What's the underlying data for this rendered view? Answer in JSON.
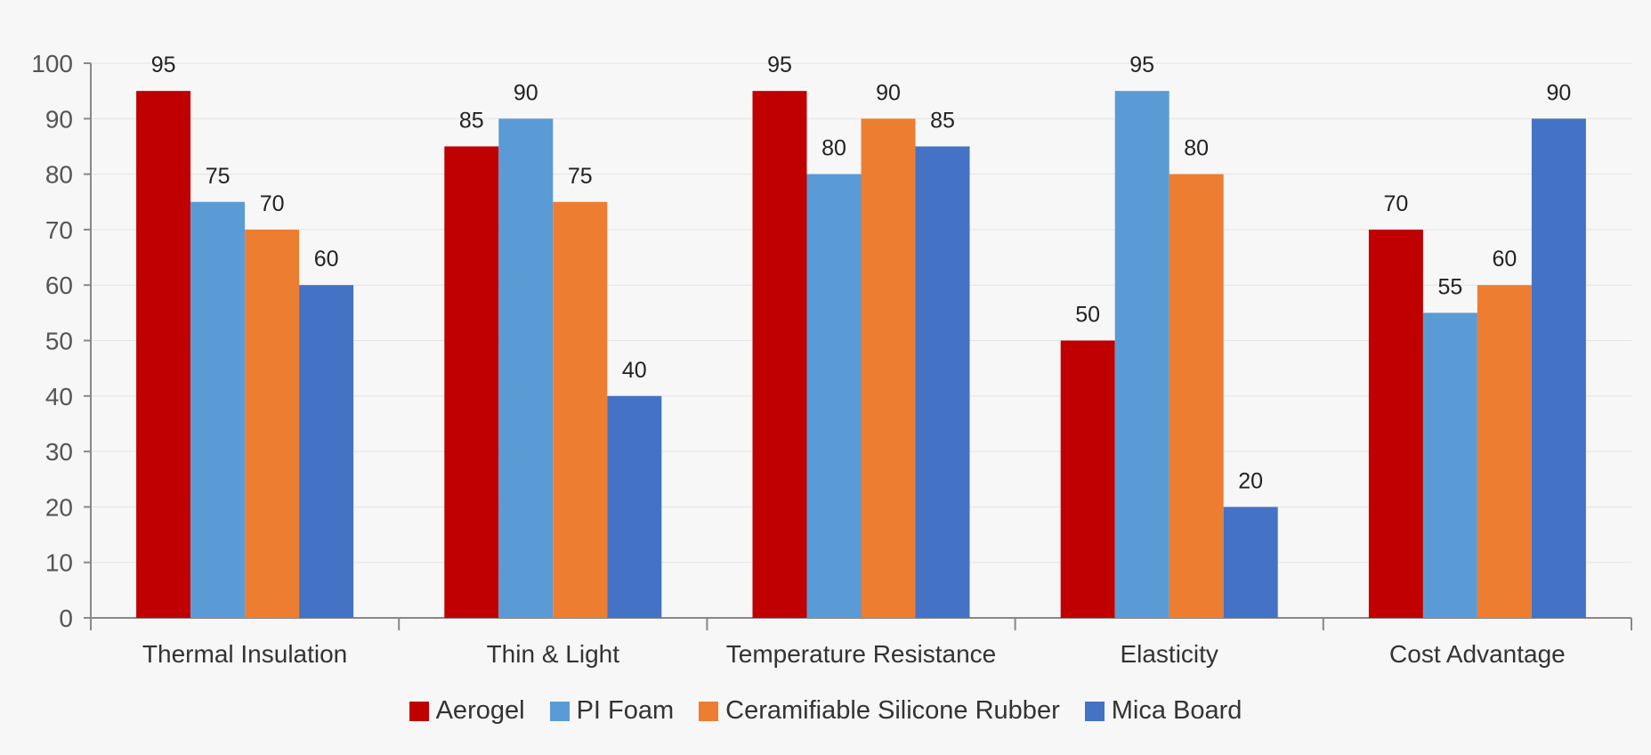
{
  "chart_data": {
    "type": "bar",
    "categories": [
      "Thermal Insulation",
      "Thin & Light",
      "Temperature Resistance",
      "Elasticity",
      "Cost Advantage"
    ],
    "series": [
      {
        "name": "Aerogel",
        "values": [
          95,
          85,
          95,
          50,
          70
        ],
        "color": "#c00000"
      },
      {
        "name": "PI Foam",
        "values": [
          75,
          90,
          80,
          95,
          55
        ],
        "color": "#5b9bd5"
      },
      {
        "name": "Ceramifiable Silicone Rubber",
        "values": [
          70,
          75,
          90,
          80,
          60
        ],
        "color": "#ed7d31"
      },
      {
        "name": "Mica Board",
        "values": [
          60,
          40,
          85,
          20,
          90
        ],
        "color": "#4472c4"
      }
    ],
    "ylim": [
      0,
      100
    ],
    "yticks": [
      0,
      10,
      20,
      30,
      40,
      50,
      60,
      70,
      80,
      90,
      100
    ],
    "grid": true,
    "data_labels": true,
    "legend_position": "bottom"
  }
}
